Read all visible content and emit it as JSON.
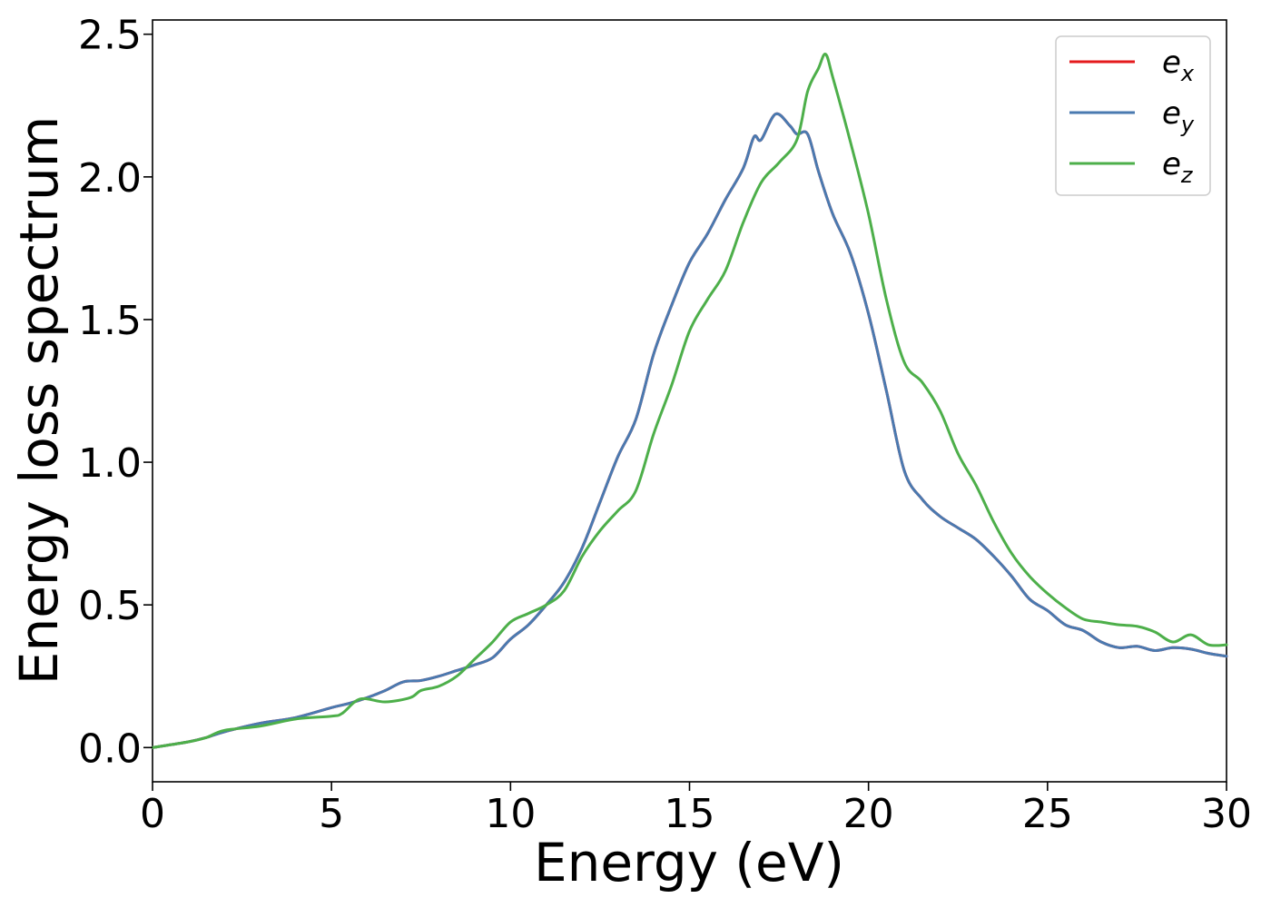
{
  "chart_data": {
    "type": "line",
    "xlabel": "Energy (eV)",
    "ylabel": "Energy loss spectrum",
    "xlim": [
      0,
      30
    ],
    "ylim": [
      -0.12,
      2.55
    ],
    "xticks": [
      0,
      5,
      10,
      15,
      20,
      25,
      30
    ],
    "yticks": [
      0.0,
      0.5,
      1.0,
      1.5,
      2.0,
      2.5
    ],
    "xtick_labels": [
      "0",
      "5",
      "10",
      "15",
      "20",
      "25",
      "30"
    ],
    "ytick_labels": [
      "0.0",
      "0.5",
      "1.0",
      "1.5",
      "2.0",
      "2.5"
    ],
    "grid": false,
    "legend_position": "top-right",
    "series": [
      {
        "name": "e_x",
        "base": "e",
        "sub": "x",
        "color": "#e41a1c",
        "x": [
          0,
          1,
          1.5,
          2,
          3,
          4,
          5,
          5.5,
          6,
          6.5,
          7,
          7.5,
          8,
          8.5,
          9,
          9.5,
          10,
          10.5,
          11,
          11.5,
          12,
          12.5,
          13,
          13.5,
          14,
          14.5,
          15,
          15.5,
          16,
          16.5,
          16.8,
          17,
          17.4,
          17.8,
          18,
          18.3,
          18.6,
          19,
          19.5,
          20,
          20.5,
          21,
          21.5,
          22,
          22.5,
          23,
          23.5,
          24,
          24.5,
          25,
          25.5,
          26,
          26.5,
          27,
          27.5,
          28,
          28.5,
          29,
          29.5,
          30
        ],
        "y": [
          0.0,
          0.02,
          0.035,
          0.055,
          0.085,
          0.105,
          0.14,
          0.155,
          0.175,
          0.2,
          0.23,
          0.235,
          0.25,
          0.27,
          0.29,
          0.315,
          0.38,
          0.43,
          0.5,
          0.58,
          0.7,
          0.86,
          1.02,
          1.15,
          1.38,
          1.55,
          1.7,
          1.8,
          1.92,
          2.03,
          2.14,
          2.13,
          2.22,
          2.18,
          2.15,
          2.15,
          2.02,
          1.87,
          1.73,
          1.52,
          1.25,
          0.97,
          0.87,
          0.81,
          0.77,
          0.73,
          0.67,
          0.6,
          0.52,
          0.48,
          0.43,
          0.41,
          0.37,
          0.35,
          0.355,
          0.34,
          0.35,
          0.345,
          0.33,
          0.32
        ]
      },
      {
        "name": "e_y",
        "base": "e",
        "sub": "y",
        "color": "#4a7ab0",
        "x": [
          0,
          1,
          1.5,
          2,
          3,
          4,
          5,
          5.5,
          6,
          6.5,
          7,
          7.5,
          8,
          8.5,
          9,
          9.5,
          10,
          10.5,
          11,
          11.5,
          12,
          12.5,
          13,
          13.5,
          14,
          14.5,
          15,
          15.5,
          16,
          16.5,
          16.8,
          17,
          17.4,
          17.8,
          18,
          18.3,
          18.6,
          19,
          19.5,
          20,
          20.5,
          21,
          21.5,
          22,
          22.5,
          23,
          23.5,
          24,
          24.5,
          25,
          25.5,
          26,
          26.5,
          27,
          27.5,
          28,
          28.5,
          29,
          29.5,
          30
        ],
        "y": [
          0.0,
          0.02,
          0.035,
          0.055,
          0.085,
          0.105,
          0.14,
          0.155,
          0.175,
          0.2,
          0.23,
          0.235,
          0.25,
          0.27,
          0.29,
          0.315,
          0.38,
          0.43,
          0.5,
          0.58,
          0.7,
          0.86,
          1.02,
          1.15,
          1.38,
          1.55,
          1.7,
          1.8,
          1.92,
          2.03,
          2.14,
          2.13,
          2.22,
          2.18,
          2.15,
          2.15,
          2.02,
          1.87,
          1.73,
          1.52,
          1.25,
          0.97,
          0.87,
          0.81,
          0.77,
          0.73,
          0.67,
          0.6,
          0.52,
          0.48,
          0.43,
          0.41,
          0.37,
          0.35,
          0.355,
          0.34,
          0.35,
          0.345,
          0.33,
          0.32
        ]
      },
      {
        "name": "e_z",
        "base": "e",
        "sub": "z",
        "color": "#4daf4a",
        "x": [
          0,
          1,
          1.5,
          2,
          3,
          4,
          5,
          5.3,
          5.8,
          6.5,
          7.2,
          7.5,
          8,
          8.5,
          9,
          9.5,
          10,
          10.5,
          11,
          11.5,
          12,
          12.5,
          13,
          13.5,
          14,
          14.5,
          15,
          15.5,
          16,
          16.5,
          17,
          17.5,
          18,
          18.3,
          18.6,
          18.8,
          19,
          19.5,
          20,
          20.5,
          21,
          21.5,
          22,
          22.5,
          23,
          23.5,
          24,
          24.5,
          25,
          25.5,
          26,
          26.5,
          27,
          27.5,
          28,
          28.5,
          29,
          29.5,
          30
        ],
        "y": [
          0.0,
          0.02,
          0.035,
          0.06,
          0.075,
          0.1,
          0.11,
          0.12,
          0.17,
          0.16,
          0.175,
          0.2,
          0.215,
          0.25,
          0.31,
          0.37,
          0.44,
          0.47,
          0.5,
          0.55,
          0.67,
          0.76,
          0.83,
          0.9,
          1.1,
          1.27,
          1.46,
          1.57,
          1.67,
          1.84,
          1.98,
          2.05,
          2.13,
          2.3,
          2.38,
          2.43,
          2.35,
          2.12,
          1.87,
          1.57,
          1.35,
          1.28,
          1.18,
          1.03,
          0.92,
          0.79,
          0.68,
          0.6,
          0.54,
          0.49,
          0.45,
          0.44,
          0.43,
          0.425,
          0.405,
          0.37,
          0.395,
          0.36,
          0.36
        ]
      }
    ]
  }
}
